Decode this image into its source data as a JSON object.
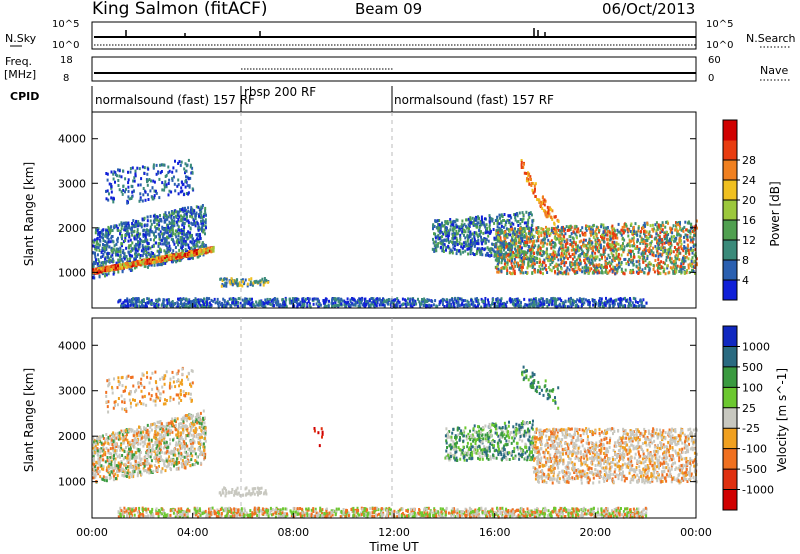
{
  "header": {
    "station": "King Salmon (fitACF)",
    "beam": "Beam 09",
    "date": "06/Oct/2013"
  },
  "labels": {
    "nsky": "N.Sky",
    "freq": "Freq.",
    "freq_unit": "[MHz]",
    "cpid": "CPID",
    "nsearch": "N.Search",
    "nave": "Nave",
    "nsky_ticks": [
      "10^5",
      "10^0"
    ],
    "nsearch_ticks": [
      "10^5",
      "10^0"
    ],
    "freq_ticks": [
      "18",
      "8"
    ],
    "nave_ticks": [
      "60",
      "0"
    ]
  },
  "cpid_segments": [
    {
      "label": "normalsound (fast) 157 RF",
      "start": 0,
      "end": 6
    },
    {
      "label": "rbsp 200 RF",
      "start": 6,
      "end": 12
    },
    {
      "label": "normalsound (fast) 157 RF",
      "start": 12,
      "end": 24
    }
  ],
  "chart_data": [
    {
      "type": "heatmap",
      "name": "power",
      "ylabel": "Slant Range [km]",
      "yticks": [
        1000,
        2000,
        3000,
        4000
      ],
      "ylim": [
        200,
        4600
      ],
      "xlim": [
        0,
        24
      ],
      "colorbar": {
        "label": "Power [dB]",
        "ticks": [
          "4",
          "8",
          "12",
          "16",
          "20",
          "24",
          "28"
        ],
        "colors": [
          "#1020d8",
          "#2a5fb0",
          "#3a8a7a",
          "#50a050",
          "#9cc83c",
          "#f0c020",
          "#f08020",
          "#e83c10",
          "#d00000"
        ]
      }
    },
    {
      "type": "heatmap",
      "name": "velocity",
      "ylabel": "Slant Range [km]",
      "yticks": [
        1000,
        2000,
        3000,
        4000
      ],
      "ylim": [
        200,
        4600
      ],
      "xlim": [
        0,
        24
      ],
      "xticks": [
        "00:00",
        "04:00",
        "08:00",
        "12:00",
        "16:00",
        "20:00",
        "00:00"
      ],
      "xlabel": "Time UT",
      "colorbar": {
        "label": "Velocity [m s^-1]",
        "ticks": [
          "1000",
          "500",
          "100",
          "25",
          "-25",
          "-100",
          "-500",
          "-1000"
        ],
        "colors": [
          "#1028c0",
          "#2a6a80",
          "#3a9a40",
          "#6cc830",
          "#c8c8c0",
          "#f0a020",
          "#f07020",
          "#e03010",
          "#d00000"
        ]
      }
    }
  ]
}
